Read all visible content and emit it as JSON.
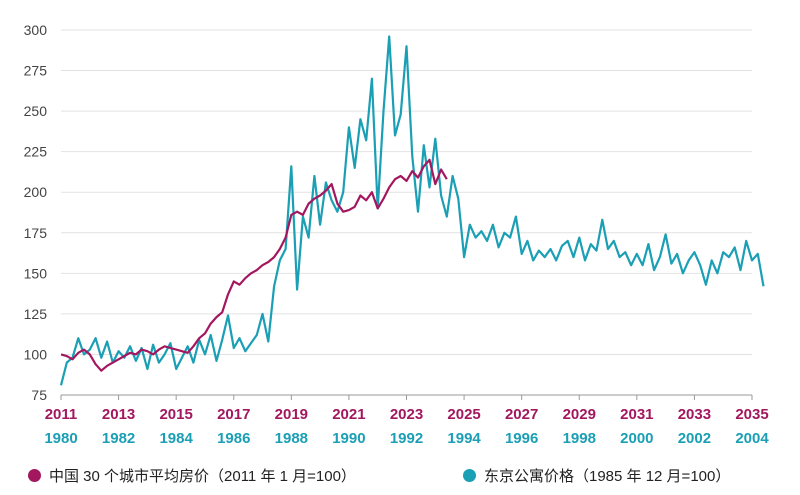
{
  "chart_data": {
    "type": "line",
    "title": "",
    "ylim": [
      75,
      300
    ],
    "y_ticks": [
      "75",
      "100",
      "125",
      "150",
      "175",
      "200",
      "225",
      "250",
      "275",
      "300"
    ],
    "x_ticks_top": [
      "2011",
      "2013",
      "2015",
      "2017",
      "2019",
      "2021",
      "2023",
      "2025",
      "2027",
      "2029",
      "2031",
      "2033",
      "2035"
    ],
    "x_ticks_bottom": [
      "1980",
      "1982",
      "1984",
      "1986",
      "1988",
      "1990",
      "1992",
      "1994",
      "1996",
      "1998",
      "2000",
      "2002",
      "2004"
    ],
    "grid": true,
    "colors": {
      "china": "#a3175f",
      "tokyo": "#1a9fb5",
      "top_axis": "#a3175f",
      "bottom_axis": "#1a9fb5"
    },
    "series": [
      {
        "name": "中国 30 个城市平均房价（2011 年 1 月=100）",
        "axis": "top",
        "color": "#a3175f",
        "points": [
          [
            2011.0,
            100
          ],
          [
            2011.2,
            99
          ],
          [
            2011.4,
            97
          ],
          [
            2011.6,
            101
          ],
          [
            2011.8,
            103
          ],
          [
            2012.0,
            100
          ],
          [
            2012.2,
            94
          ],
          [
            2012.4,
            90
          ],
          [
            2012.6,
            93
          ],
          [
            2012.8,
            95
          ],
          [
            2013.0,
            97
          ],
          [
            2013.2,
            99
          ],
          [
            2013.4,
            101
          ],
          [
            2013.6,
            100
          ],
          [
            2013.8,
            103
          ],
          [
            2014.0,
            102
          ],
          [
            2014.2,
            100
          ],
          [
            2014.4,
            103
          ],
          [
            2014.6,
            105
          ],
          [
            2014.8,
            104
          ],
          [
            2015.0,
            103
          ],
          [
            2015.2,
            102
          ],
          [
            2015.4,
            101
          ],
          [
            2015.6,
            105
          ],
          [
            2015.8,
            110
          ],
          [
            2016.0,
            113
          ],
          [
            2016.2,
            119
          ],
          [
            2016.4,
            123
          ],
          [
            2016.6,
            126
          ],
          [
            2016.8,
            137
          ],
          [
            2017.0,
            145
          ],
          [
            2017.2,
            143
          ],
          [
            2017.4,
            147
          ],
          [
            2017.6,
            150
          ],
          [
            2017.8,
            152
          ],
          [
            2018.0,
            155
          ],
          [
            2018.2,
            157
          ],
          [
            2018.4,
            160
          ],
          [
            2018.6,
            165
          ],
          [
            2018.8,
            172
          ],
          [
            2019.0,
            186
          ],
          [
            2019.2,
            188
          ],
          [
            2019.4,
            186
          ],
          [
            2019.6,
            193
          ],
          [
            2019.8,
            196
          ],
          [
            2020.0,
            198
          ],
          [
            2020.2,
            201
          ],
          [
            2020.4,
            205
          ],
          [
            2020.6,
            193
          ],
          [
            2020.8,
            188
          ],
          [
            2021.0,
            189
          ],
          [
            2021.2,
            191
          ],
          [
            2021.4,
            198
          ],
          [
            2021.6,
            195
          ],
          [
            2021.8,
            200
          ],
          [
            2022.0,
            190
          ],
          [
            2022.2,
            196
          ],
          [
            2022.4,
            203
          ],
          [
            2022.6,
            208
          ],
          [
            2022.8,
            210
          ],
          [
            2023.0,
            207
          ],
          [
            2023.2,
            213
          ],
          [
            2023.4,
            209
          ],
          [
            2023.6,
            216
          ],
          [
            2023.8,
            220
          ],
          [
            2024.0,
            205
          ],
          [
            2024.2,
            214
          ],
          [
            2024.4,
            208
          ]
        ]
      },
      {
        "name": "东京公寓价格（1985 年 12 月=100）",
        "axis": "bottom",
        "color": "#1a9fb5",
        "points": [
          [
            1980.0,
            81
          ],
          [
            1980.2,
            95
          ],
          [
            1980.4,
            98
          ],
          [
            1980.6,
            110
          ],
          [
            1980.8,
            100
          ],
          [
            1981.0,
            103
          ],
          [
            1981.2,
            110
          ],
          [
            1981.4,
            98
          ],
          [
            1981.6,
            108
          ],
          [
            1981.8,
            95
          ],
          [
            1982.0,
            102
          ],
          [
            1982.2,
            98
          ],
          [
            1982.4,
            105
          ],
          [
            1982.6,
            96
          ],
          [
            1982.8,
            104
          ],
          [
            1983.0,
            91
          ],
          [
            1983.2,
            106
          ],
          [
            1983.4,
            95
          ],
          [
            1983.6,
            100
          ],
          [
            1983.8,
            107
          ],
          [
            1984.0,
            91
          ],
          [
            1984.2,
            98
          ],
          [
            1984.4,
            105
          ],
          [
            1984.6,
            95
          ],
          [
            1984.8,
            109
          ],
          [
            1985.0,
            100
          ],
          [
            1985.2,
            112
          ],
          [
            1985.4,
            96
          ],
          [
            1985.6,
            109
          ],
          [
            1985.8,
            124
          ],
          [
            1986.0,
            104
          ],
          [
            1986.2,
            110
          ],
          [
            1986.4,
            102
          ],
          [
            1986.6,
            107
          ],
          [
            1986.8,
            112
          ],
          [
            1987.0,
            125
          ],
          [
            1987.2,
            108
          ],
          [
            1987.4,
            142
          ],
          [
            1987.6,
            158
          ],
          [
            1987.8,
            165
          ],
          [
            1988.0,
            216
          ],
          [
            1988.2,
            140
          ],
          [
            1988.4,
            185
          ],
          [
            1988.6,
            172
          ],
          [
            1988.8,
            210
          ],
          [
            1989.0,
            180
          ],
          [
            1989.2,
            206
          ],
          [
            1989.4,
            195
          ],
          [
            1989.6,
            188
          ],
          [
            1989.8,
            200
          ],
          [
            1990.0,
            240
          ],
          [
            1990.2,
            215
          ],
          [
            1990.4,
            245
          ],
          [
            1990.6,
            232
          ],
          [
            1990.8,
            270
          ],
          [
            1991.0,
            190
          ],
          [
            1991.2,
            250
          ],
          [
            1991.4,
            296
          ],
          [
            1991.6,
            235
          ],
          [
            1991.8,
            248
          ],
          [
            1992.0,
            290
          ],
          [
            1992.2,
            222
          ],
          [
            1992.4,
            188
          ],
          [
            1992.6,
            229
          ],
          [
            1992.8,
            203
          ],
          [
            1993.0,
            233
          ],
          [
            1993.2,
            198
          ],
          [
            1993.4,
            185
          ],
          [
            1993.6,
            210
          ],
          [
            1993.8,
            196
          ],
          [
            1994.0,
            160
          ],
          [
            1994.2,
            180
          ],
          [
            1994.4,
            172
          ],
          [
            1994.6,
            176
          ],
          [
            1994.8,
            170
          ],
          [
            1995.0,
            180
          ],
          [
            1995.2,
            166
          ],
          [
            1995.4,
            175
          ],
          [
            1995.6,
            172
          ],
          [
            1995.8,
            185
          ],
          [
            1996.0,
            162
          ],
          [
            1996.2,
            170
          ],
          [
            1996.4,
            158
          ],
          [
            1996.6,
            164
          ],
          [
            1996.8,
            160
          ],
          [
            1997.0,
            165
          ],
          [
            1997.2,
            158
          ],
          [
            1997.4,
            167
          ],
          [
            1997.6,
            170
          ],
          [
            1997.8,
            160
          ],
          [
            1998.0,
            172
          ],
          [
            1998.2,
            158
          ],
          [
            1998.4,
            168
          ],
          [
            1998.6,
            164
          ],
          [
            1998.8,
            183
          ],
          [
            1999.0,
            165
          ],
          [
            1999.2,
            170
          ],
          [
            1999.4,
            160
          ],
          [
            1999.6,
            163
          ],
          [
            1999.8,
            155
          ],
          [
            2000.0,
            162
          ],
          [
            2000.2,
            155
          ],
          [
            2000.4,
            168
          ],
          [
            2000.6,
            152
          ],
          [
            2000.8,
            160
          ],
          [
            2001.0,
            174
          ],
          [
            2001.2,
            156
          ],
          [
            2001.4,
            162
          ],
          [
            2001.6,
            150
          ],
          [
            2001.8,
            158
          ],
          [
            2002.0,
            163
          ],
          [
            2002.2,
            155
          ],
          [
            2002.4,
            143
          ],
          [
            2002.6,
            158
          ],
          [
            2002.8,
            150
          ],
          [
            2003.0,
            163
          ],
          [
            2003.2,
            160
          ],
          [
            2003.4,
            166
          ],
          [
            2003.6,
            152
          ],
          [
            2003.8,
            170
          ],
          [
            2004.0,
            158
          ],
          [
            2004.2,
            162
          ],
          [
            2004.4,
            142
          ]
        ]
      }
    ]
  },
  "legend": {
    "china_label": "中国 30 个城市平均房价（2011 年 1 月=100）",
    "tokyo_label": "东京公寓价格（1985 年 12 月=100）"
  }
}
